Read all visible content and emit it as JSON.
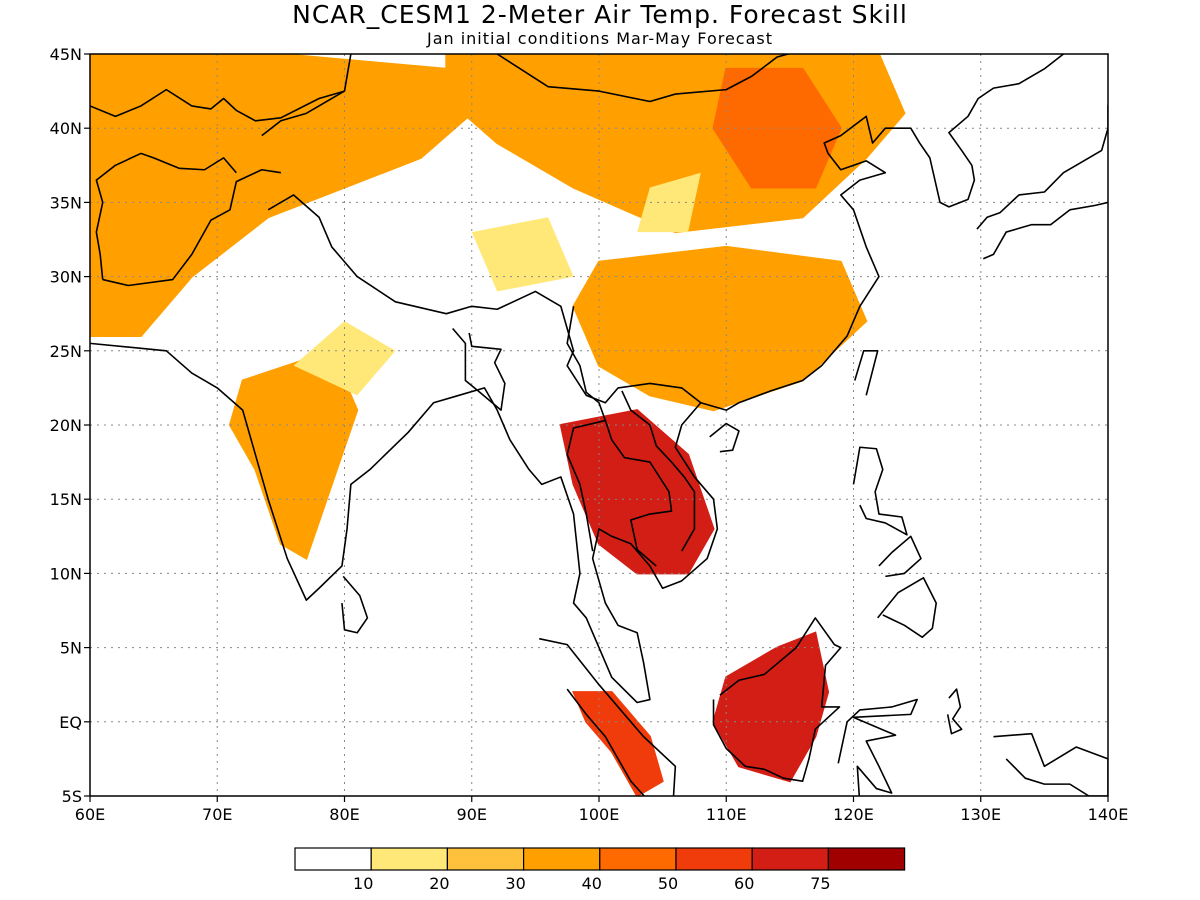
{
  "title": "NCAR_CESM1 2-Meter Air Temp. Forecast Skill",
  "subtitle": "Jan initial conditions  Mar-May Forecast",
  "map": {
    "lon_range": [
      60,
      140
    ],
    "lat_range": [
      -5,
      45
    ],
    "lon_ticks": [
      "60E",
      "70E",
      "80E",
      "90E",
      "100E",
      "110E",
      "120E",
      "130E",
      "140E"
    ],
    "lat_ticks": [
      "45N",
      "40N",
      "35N",
      "30N",
      "25N",
      "20N",
      "15N",
      "10N",
      "5N",
      "EQ",
      "5S"
    ],
    "grid": "dotted",
    "land_outline_color": "#000000"
  },
  "legend": {
    "placement": "bottom-center",
    "labels": [
      "10",
      "20",
      "30",
      "40",
      "50",
      "60",
      "75"
    ],
    "colors": [
      "#ffffff",
      "#ffe878",
      "#ffc03c",
      "#ffa000",
      "#ff6a00",
      "#f03c0a",
      "#d21e14",
      "#a00000"
    ]
  },
  "skill_regions": [
    {
      "name": "central-asia",
      "level": 3,
      "pts": [
        [
          60,
          45
        ],
        [
          75,
          45
        ],
        [
          88,
          44
        ],
        [
          90,
          41
        ],
        [
          86,
          38
        ],
        [
          80,
          36
        ],
        [
          74,
          34
        ],
        [
          68,
          30
        ],
        [
          64,
          26
        ],
        [
          60,
          26
        ]
      ]
    },
    {
      "name": "mongolia-north-china",
      "level": 3,
      "pts": [
        [
          88,
          45
        ],
        [
          122,
          45
        ],
        [
          124,
          41
        ],
        [
          121,
          38
        ],
        [
          116,
          34
        ],
        [
          106,
          33
        ],
        [
          98,
          36
        ],
        [
          92,
          39
        ],
        [
          88,
          42
        ]
      ]
    },
    {
      "name": "south-china",
      "level": 3,
      "pts": [
        [
          100,
          31
        ],
        [
          110,
          32
        ],
        [
          119,
          31
        ],
        [
          121,
          27
        ],
        [
          116,
          23
        ],
        [
          109,
          21
        ],
        [
          104,
          22
        ],
        [
          100,
          24
        ],
        [
          98,
          28
        ]
      ]
    },
    {
      "name": "northeast-china",
      "level": 4,
      "pts": [
        [
          110,
          44
        ],
        [
          116,
          44
        ],
        [
          119,
          40
        ],
        [
          117,
          36
        ],
        [
          112,
          36
        ],
        [
          109,
          40
        ]
      ]
    },
    {
      "name": "india-west",
      "level": 3,
      "pts": [
        [
          72,
          23
        ],
        [
          79,
          25
        ],
        [
          81,
          21
        ],
        [
          79,
          16
        ],
        [
          77,
          11
        ],
        [
          75,
          12
        ],
        [
          73,
          17
        ],
        [
          71,
          20
        ]
      ]
    },
    {
      "name": "thailand-cambodia",
      "level": 6,
      "pts": [
        [
          97,
          20
        ],
        [
          103,
          21
        ],
        [
          107,
          18
        ],
        [
          109,
          13
        ],
        [
          107,
          10
        ],
        [
          103,
          10
        ],
        [
          100,
          12
        ],
        [
          98,
          16
        ]
      ]
    },
    {
      "name": "borneo",
      "level": 6,
      "pts": [
        [
          110,
          3
        ],
        [
          114,
          5
        ],
        [
          117,
          6
        ],
        [
          118,
          2
        ],
        [
          117,
          -1
        ],
        [
          115,
          -4
        ],
        [
          111,
          -3
        ],
        [
          109,
          0
        ]
      ]
    },
    {
      "name": "sumatra",
      "level": 5,
      "pts": [
        [
          98,
          2
        ],
        [
          101,
          2
        ],
        [
          104,
          -1
        ],
        [
          105,
          -4
        ],
        [
          103,
          -5
        ],
        [
          101,
          -2
        ],
        [
          99,
          0
        ]
      ]
    }
  ]
}
